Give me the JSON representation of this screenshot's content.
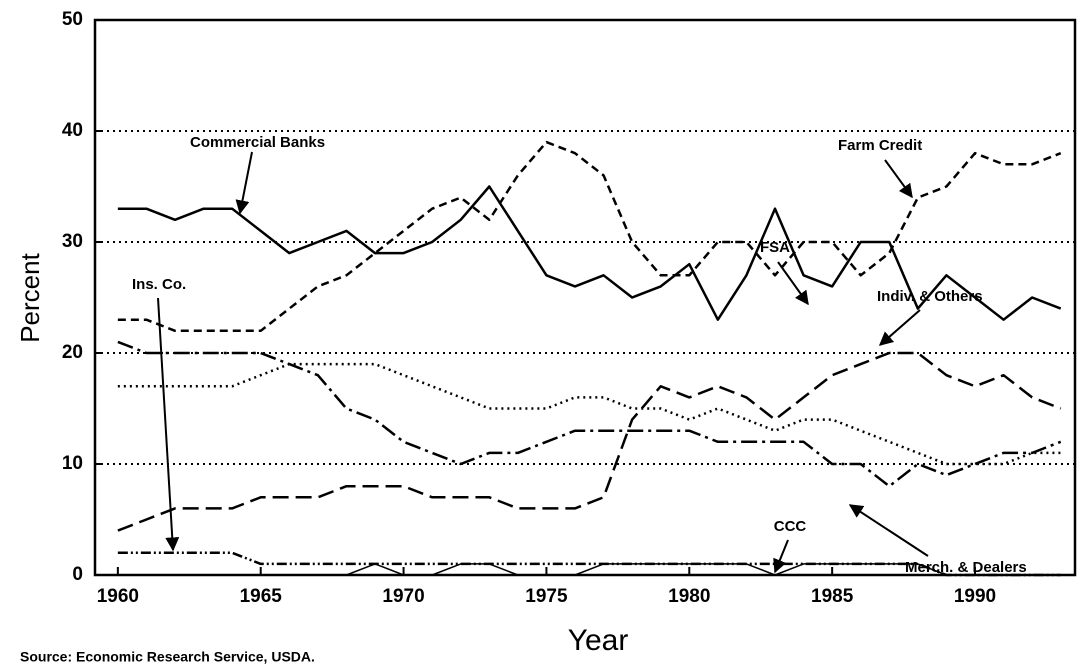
{
  "chart_data": {
    "type": "line",
    "xlabel": "Year",
    "ylabel": "Percent",
    "source": "Source:  Economic Research Service, USDA.",
    "x": [
      1960,
      1961,
      1962,
      1963,
      1964,
      1965,
      1966,
      1967,
      1968,
      1969,
      1970,
      1971,
      1972,
      1973,
      1974,
      1975,
      1976,
      1977,
      1978,
      1979,
      1980,
      1981,
      1982,
      1983,
      1984,
      1985,
      1986,
      1987,
      1988,
      1989,
      1990,
      1991,
      1992,
      1993
    ],
    "xlim": [
      1959.2,
      1993.5
    ],
    "xticks": [
      1960,
      1965,
      1970,
      1975,
      1980,
      1985,
      1990
    ],
    "ylim": [
      0,
      50
    ],
    "yticks": [
      0,
      10,
      20,
      30,
      40,
      50
    ],
    "grid": true,
    "series": [
      {
        "name": "Commercial Banks",
        "color": "#000000",
        "dash": "solid",
        "values": [
          33,
          33,
          32,
          33,
          33,
          31,
          29,
          30,
          31,
          29,
          29,
          30,
          32,
          35,
          31,
          27,
          26,
          27,
          25,
          26,
          28,
          23,
          27,
          33,
          27,
          26,
          30,
          30,
          24,
          27,
          25,
          23,
          25,
          24
        ]
      },
      {
        "name": "Farm Credit",
        "color": "#000000",
        "dash": "8 5",
        "values": [
          23,
          23,
          22,
          22,
          22,
          22,
          24,
          26,
          27,
          29,
          31,
          33,
          34,
          32,
          36,
          39,
          38,
          36,
          30,
          27,
          27,
          30,
          30,
          27,
          30,
          30,
          27,
          29,
          34,
          35,
          38,
          37,
          37,
          38
        ]
      },
      {
        "name": "FSA",
        "color": "#000000",
        "dash": "16 7",
        "values": [
          4,
          5,
          6,
          6,
          6,
          7,
          7,
          7,
          8,
          8,
          8,
          7,
          7,
          7,
          6,
          6,
          6,
          7,
          14,
          17,
          16,
          17,
          16,
          14,
          16,
          18,
          19,
          20,
          20,
          18,
          17,
          18,
          16,
          15
        ]
      },
      {
        "name": "Indiv. & Others",
        "color": "#000000",
        "dash": "2 4",
        "values": [
          17,
          17,
          17,
          17,
          17,
          18,
          19,
          19,
          19,
          19,
          18,
          17,
          16,
          15,
          15,
          15,
          16,
          16,
          15,
          15,
          14,
          15,
          14,
          13,
          14,
          14,
          13,
          12,
          11,
          10,
          10,
          10,
          11,
          11
        ]
      },
      {
        "name": "Merch. & Dealers",
        "color": "#000000",
        "dash": "16 5 3 5",
        "values": [
          21,
          20,
          20,
          20,
          20,
          20,
          19,
          18,
          15,
          14,
          12,
          11,
          10,
          11,
          11,
          12,
          13,
          13,
          13,
          13,
          13,
          12,
          12,
          12,
          12,
          10,
          10,
          8,
          10,
          9,
          10,
          11,
          11,
          12
        ]
      },
      {
        "name": "Ins. Co.",
        "color": "#000000",
        "dash": "10 3 2 3 2 3",
        "values": [
          2,
          2,
          2,
          2,
          2,
          1,
          1,
          1,
          1,
          1,
          1,
          1,
          1,
          1,
          1,
          1,
          1,
          1,
          1,
          1,
          1,
          1,
          1,
          1,
          1,
          1,
          1,
          1,
          1,
          0,
          0,
          0,
          0,
          0
        ]
      },
      {
        "name": "CCC",
        "color": "#000000",
        "dash": "solid",
        "thin": true,
        "values": [
          0,
          0,
          0,
          0,
          0,
          0,
          0,
          0,
          0,
          1,
          0,
          0,
          1,
          1,
          0,
          0,
          0,
          1,
          1,
          1,
          1,
          1,
          1,
          0,
          1,
          1,
          1,
          1,
          1,
          0,
          0,
          0,
          0,
          0
        ]
      }
    ]
  }
}
